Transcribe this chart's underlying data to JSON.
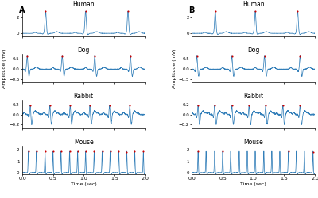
{
  "animals": [
    "Human",
    "Dog",
    "Rabbit",
    "Mouse"
  ],
  "xlim": [
    0,
    2
  ],
  "xlabel": "Time (sec)",
  "ylabel": "Amplitude (mV)",
  "line_color": "#2878b5",
  "peak_color": "#cc0000",
  "human_A_peaks": [
    0.38,
    1.03,
    1.72
  ],
  "human_B_peaks": [
    0.38,
    1.03,
    1.72
  ],
  "dog_A_peaks": [
    0.08,
    0.65,
    1.18,
    1.76
  ],
  "dog_B_peaks": [
    0.08,
    0.65,
    1.18,
    1.76
  ],
  "rabbit_A_peaks": [
    0.13,
    0.45,
    0.78,
    1.1,
    1.42,
    1.75
  ],
  "rabbit_B_peaks": [
    0.1,
    0.37,
    0.65,
    0.93,
    1.2,
    1.48,
    1.76
  ],
  "mouse_A_peaks": [
    0.1,
    0.23,
    0.37,
    0.5,
    0.63,
    0.77,
    0.9,
    1.03,
    1.17,
    1.3,
    1.43,
    1.57,
    1.7,
    1.83,
    1.97
  ],
  "mouse_B_peaks": [
    0.1,
    0.23,
    0.37,
    0.5,
    0.63,
    0.77,
    0.9,
    1.03,
    1.17,
    1.3,
    1.43,
    1.57,
    1.7,
    1.83,
    1.97
  ],
  "mouse_B_red_peaks": [
    0.1,
    0.5,
    1.57,
    1.97
  ],
  "human_ylim": [
    -0.4,
    3.2
  ],
  "dog_ylim": [
    -0.65,
    0.75
  ],
  "rabbit_ylim": [
    -0.28,
    0.3
  ],
  "mouse_ylim": [
    -0.15,
    2.4
  ],
  "human_yticks": [
    0,
    2
  ],
  "dog_yticks": [
    -0.5,
    0,
    0.5
  ],
  "rabbit_yticks": [
    -0.2,
    0,
    0.2
  ],
  "mouse_yticks": [
    0,
    1,
    2
  ],
  "xticks": [
    0,
    0.5,
    1,
    1.5,
    2
  ]
}
